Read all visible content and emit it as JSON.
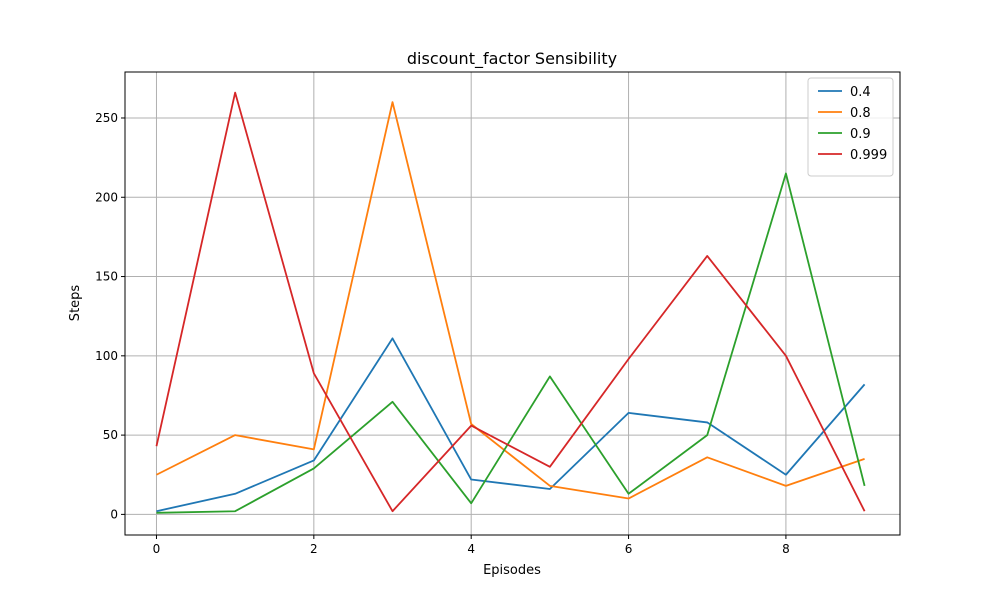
{
  "chart_data": {
    "type": "line",
    "title": "discount_factor Sensibility",
    "xlabel": "Episodes",
    "ylabel": "Steps",
    "x": [
      0,
      1,
      2,
      3,
      4,
      5,
      6,
      7,
      8,
      9
    ],
    "xlim": [
      -0.4,
      9.45
    ],
    "ylim": [
      -13,
      279
    ],
    "xticks": [
      0,
      2,
      4,
      6,
      8
    ],
    "yticks": [
      0,
      50,
      100,
      150,
      200,
      250
    ],
    "grid": true,
    "legend_position": "top-right",
    "series": [
      {
        "name": "0.4",
        "color": "#1f77b4",
        "values": [
          2,
          13,
          34,
          111,
          22,
          16,
          64,
          58,
          25,
          82
        ]
      },
      {
        "name": "0.8",
        "color": "#ff7f0e",
        "values": [
          25,
          50,
          41,
          260,
          57,
          18,
          10,
          36,
          18,
          35
        ]
      },
      {
        "name": "0.9",
        "color": "#2ca02c",
        "values": [
          1,
          2,
          29,
          71,
          7,
          87,
          13,
          50,
          215,
          18
        ]
      },
      {
        "name": "0.999",
        "color": "#d62728",
        "values": [
          43,
          266,
          89,
          2,
          56,
          30,
          98,
          163,
          100,
          2
        ]
      }
    ]
  }
}
